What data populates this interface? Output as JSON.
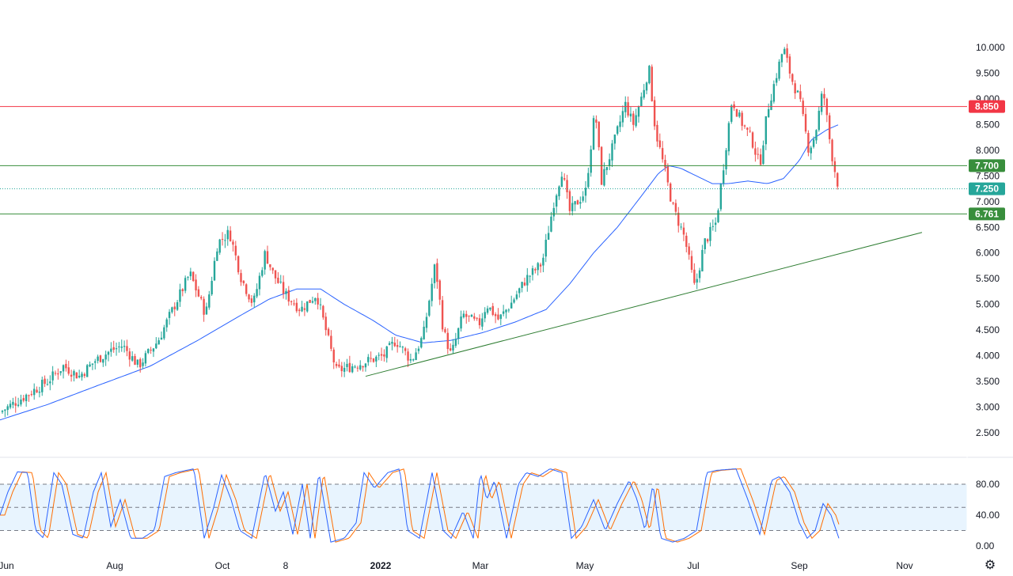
{
  "chart_data": [
    {
      "type": "candlestick",
      "title": "",
      "colors": {
        "up": "#26a69a",
        "down": "#ef5350",
        "ma": "#2962ff",
        "resistance": "#f23645",
        "support": "#388e3c"
      },
      "x_ticks": [
        "Jun",
        "Aug",
        "Oct",
        "8",
        "2022",
        "Mar",
        "May",
        "Jul",
        "Sep",
        "Nov"
      ],
      "y_ticks": [
        "10.000",
        "9.500",
        "9.000",
        "8.500",
        "8.000",
        "7.500",
        "7.000",
        "6.500",
        "6.000",
        "5.500",
        "5.000",
        "4.500",
        "4.000",
        "3.500",
        "3.000",
        "2.500"
      ],
      "ylim": [
        2.2,
        10.3
      ],
      "price_key_points": [
        [
          0,
          2.9
        ],
        [
          20,
          3.1
        ],
        [
          40,
          3.3
        ],
        [
          60,
          3.5
        ],
        [
          80,
          3.8
        ],
        [
          100,
          3.6
        ],
        [
          120,
          3.9
        ],
        [
          140,
          4.1
        ],
        [
          155,
          4.2
        ],
        [
          175,
          3.8
        ],
        [
          200,
          4.3
        ],
        [
          215,
          4.8
        ],
        [
          240,
          5.6
        ],
        [
          260,
          4.8
        ],
        [
          275,
          6.2
        ],
        [
          290,
          6.4
        ],
        [
          305,
          5.5
        ],
        [
          320,
          5.0
        ],
        [
          335,
          6.0
        ],
        [
          345,
          5.6
        ],
        [
          360,
          5.2
        ],
        [
          380,
          4.9
        ],
        [
          400,
          5.2
        ],
        [
          410,
          4.6
        ],
        [
          425,
          3.7
        ],
        [
          445,
          3.8
        ],
        [
          465,
          3.9
        ],
        [
          485,
          4.0
        ],
        [
          500,
          4.3
        ],
        [
          520,
          3.9
        ],
        [
          535,
          4.4
        ],
        [
          550,
          5.8
        ],
        [
          560,
          4.5
        ],
        [
          570,
          4.0
        ],
        [
          585,
          4.8
        ],
        [
          605,
          4.6
        ],
        [
          615,
          5.0
        ],
        [
          630,
          4.7
        ],
        [
          645,
          5.0
        ],
        [
          665,
          5.5
        ],
        [
          685,
          5.8
        ],
        [
          700,
          7.0
        ],
        [
          710,
          7.6
        ],
        [
          720,
          6.8
        ],
        [
          740,
          7.2
        ],
        [
          752,
          8.8
        ],
        [
          760,
          7.4
        ],
        [
          775,
          8.1
        ],
        [
          790,
          8.9
        ],
        [
          800,
          8.5
        ],
        [
          810,
          9.0
        ],
        [
          820,
          9.6
        ],
        [
          828,
          8.4
        ],
        [
          840,
          7.6
        ],
        [
          850,
          6.9
        ],
        [
          865,
          6.3
        ],
        [
          878,
          5.3
        ],
        [
          890,
          6.2
        ],
        [
          905,
          6.6
        ],
        [
          915,
          7.8
        ],
        [
          925,
          9.0
        ],
        [
          935,
          8.6
        ],
        [
          950,
          8.2
        ],
        [
          960,
          7.7
        ],
        [
          970,
          8.8
        ],
        [
          980,
          9.4
        ],
        [
          990,
          10.0
        ],
        [
          1000,
          9.4
        ],
        [
          1010,
          9.0
        ],
        [
          1022,
          8.0
        ],
        [
          1030,
          8.3
        ],
        [
          1040,
          9.2
        ],
        [
          1050,
          8.0
        ],
        [
          1055,
          7.6
        ],
        [
          1060,
          7.25
        ]
      ],
      "ma_key_points": [
        [
          0,
          2.75
        ],
        [
          60,
          3.05
        ],
        [
          120,
          3.4
        ],
        [
          190,
          3.8
        ],
        [
          250,
          4.3
        ],
        [
          300,
          4.75
        ],
        [
          340,
          5.1
        ],
        [
          375,
          5.3
        ],
        [
          405,
          5.3
        ],
        [
          435,
          5.0
        ],
        [
          470,
          4.7
        ],
        [
          500,
          4.4
        ],
        [
          535,
          4.25
        ],
        [
          570,
          4.3
        ],
        [
          610,
          4.45
        ],
        [
          650,
          4.65
        ],
        [
          690,
          4.9
        ],
        [
          720,
          5.4
        ],
        [
          750,
          6.0
        ],
        [
          780,
          6.5
        ],
        [
          810,
          7.1
        ],
        [
          832,
          7.55
        ],
        [
          845,
          7.7
        ],
        [
          860,
          7.65
        ],
        [
          880,
          7.5
        ],
        [
          900,
          7.35
        ],
        [
          920,
          7.35
        ],
        [
          945,
          7.4
        ],
        [
          970,
          7.35
        ],
        [
          990,
          7.45
        ],
        [
          1010,
          7.8
        ],
        [
          1025,
          8.2
        ],
        [
          1045,
          8.4
        ],
        [
          1060,
          8.5
        ]
      ],
      "resistance": {
        "value": 8.85,
        "label": "8.850"
      },
      "support_upper": {
        "value": 7.7,
        "label": "7.700"
      },
      "support_lower": {
        "value": 6.761,
        "label": "6.761"
      },
      "last_price": {
        "value": 7.25,
        "label": "7.250"
      },
      "trendline": {
        "start": [
          462,
          3.6
        ],
        "end": [
          1165,
          6.4
        ]
      }
    },
    {
      "type": "line",
      "title": "",
      "y_ticks": [
        "80.00",
        "40.00",
        "0.00"
      ],
      "ylim": [
        -5,
        105
      ],
      "band": [
        20,
        80
      ],
      "midline": 50,
      "stoch_k_key_points": [
        [
          0,
          40
        ],
        [
          10,
          70
        ],
        [
          22,
          96
        ],
        [
          35,
          95
        ],
        [
          45,
          20
        ],
        [
          55,
          10
        ],
        [
          68,
          95
        ],
        [
          78,
          80
        ],
        [
          92,
          15
        ],
        [
          105,
          10
        ],
        [
          118,
          70
        ],
        [
          128,
          95
        ],
        [
          140,
          25
        ],
        [
          152,
          60
        ],
        [
          165,
          10
        ],
        [
          180,
          10
        ],
        [
          195,
          20
        ],
        [
          208,
          90
        ],
        [
          222,
          95
        ],
        [
          245,
          100
        ],
        [
          258,
          10
        ],
        [
          270,
          50
        ],
        [
          280,
          92
        ],
        [
          292,
          60
        ],
        [
          303,
          20
        ],
        [
          318,
          10
        ],
        [
          335,
          95
        ],
        [
          348,
          45
        ],
        [
          358,
          70
        ],
        [
          370,
          15
        ],
        [
          382,
          80
        ],
        [
          392,
          10
        ],
        [
          403,
          95
        ],
        [
          418,
          5
        ],
        [
          435,
          10
        ],
        [
          450,
          30
        ],
        [
          460,
          95
        ],
        [
          473,
          75
        ],
        [
          490,
          95
        ],
        [
          505,
          100
        ],
        [
          515,
          20
        ],
        [
          530,
          10
        ],
        [
          546,
          95
        ],
        [
          560,
          20
        ],
        [
          570,
          10
        ],
        [
          585,
          45
        ],
        [
          598,
          10
        ],
        [
          607,
          95
        ],
        [
          615,
          60
        ],
        [
          625,
          85
        ],
        [
          640,
          10
        ],
        [
          655,
          80
        ],
        [
          665,
          95
        ],
        [
          680,
          90
        ],
        [
          695,
          100
        ],
        [
          710,
          95
        ],
        [
          722,
          10
        ],
        [
          735,
          25
        ],
        [
          750,
          60
        ],
        [
          765,
          20
        ],
        [
          780,
          55
        ],
        [
          795,
          85
        ],
        [
          805,
          60
        ],
        [
          815,
          20
        ],
        [
          825,
          80
        ],
        [
          835,
          10
        ],
        [
          850,
          5
        ],
        [
          865,
          10
        ],
        [
          880,
          20
        ],
        [
          893,
          95
        ],
        [
          905,
          98
        ],
        [
          930,
          100
        ],
        [
          945,
          60
        ],
        [
          960,
          15
        ],
        [
          975,
          85
        ],
        [
          985,
          90
        ],
        [
          998,
          70
        ],
        [
          1010,
          30
        ],
        [
          1020,
          10
        ],
        [
          1030,
          20
        ],
        [
          1040,
          55
        ],
        [
          1050,
          40
        ],
        [
          1060,
          10
        ]
      ]
    }
  ]
}
